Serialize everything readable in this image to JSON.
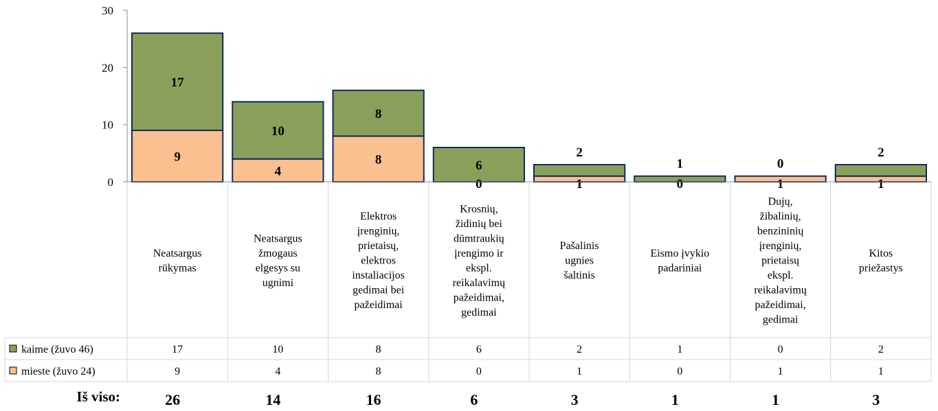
{
  "chart_data": {
    "type": "bar",
    "stacked": true,
    "categories": [
      "Neatsargus rūkymas",
      "Neatsargus žmogaus elgesys su ugnimi",
      "Elektros įrenginių, prietaisų, elektros instaliacijos gedimai bei pažeidimai",
      "Krosnių, židinių bei dūmtraukių įrengimo ir ekspl. reikalavimų pažeidimai, gedimai",
      "Pašalinis ugnies šaltinis",
      "Eismo įvykio padariniai",
      "Dujų, žibalinių, benzininių įrenginių, prietaisų ekspl. reikalavimų pažeidimai, gedimai",
      "Kitos priežastys"
    ],
    "category_lines": [
      [
        "Neatsargus",
        "rūkymas"
      ],
      [
        "Neatsargus",
        "žmogaus",
        "elgesys su",
        "ugnimi"
      ],
      [
        "Elektros",
        "įrenginių,",
        "prietaisų,",
        "elektros",
        "instaliacijos",
        "gedimai bei",
        "pažeidimai"
      ],
      [
        "Krosnių,",
        "židinių bei",
        "dūmtraukių",
        "įrengimo ir",
        "ekspl.",
        "reikalavimų",
        "pažeidimai,",
        "gedimai"
      ],
      [
        "Pašalinis",
        "ugnies",
        "šaltinis"
      ],
      [
        "Eismo įvykio",
        "padariniai"
      ],
      [
        "Dujų,",
        "žibalinių,",
        "benzininių",
        "įrenginių,",
        "prietaisų",
        "ekspl.",
        "reikalavimų",
        "pažeidimai,",
        "gedimai"
      ],
      [
        "Kitos",
        "priežastys"
      ]
    ],
    "series": [
      {
        "name": "kaime (žuvo 46)",
        "color": "#8aa05a",
        "values": [
          17,
          10,
          8,
          6,
          2,
          1,
          0,
          2
        ]
      },
      {
        "name": "mieste (žuvo 24)",
        "color": "#fac090",
        "values": [
          9,
          4,
          8,
          0,
          1,
          0,
          1,
          1
        ]
      }
    ],
    "totals_label": "Iš viso:",
    "totals": [
      26,
      14,
      16,
      6,
      3,
      1,
      1,
      3
    ],
    "yticks": [
      "0",
      "10",
      "20",
      "30"
    ],
    "ylim": [
      0,
      30
    ],
    "bar_outline_color": "#0f2a5a",
    "data_table": true,
    "legend": "data-table"
  }
}
